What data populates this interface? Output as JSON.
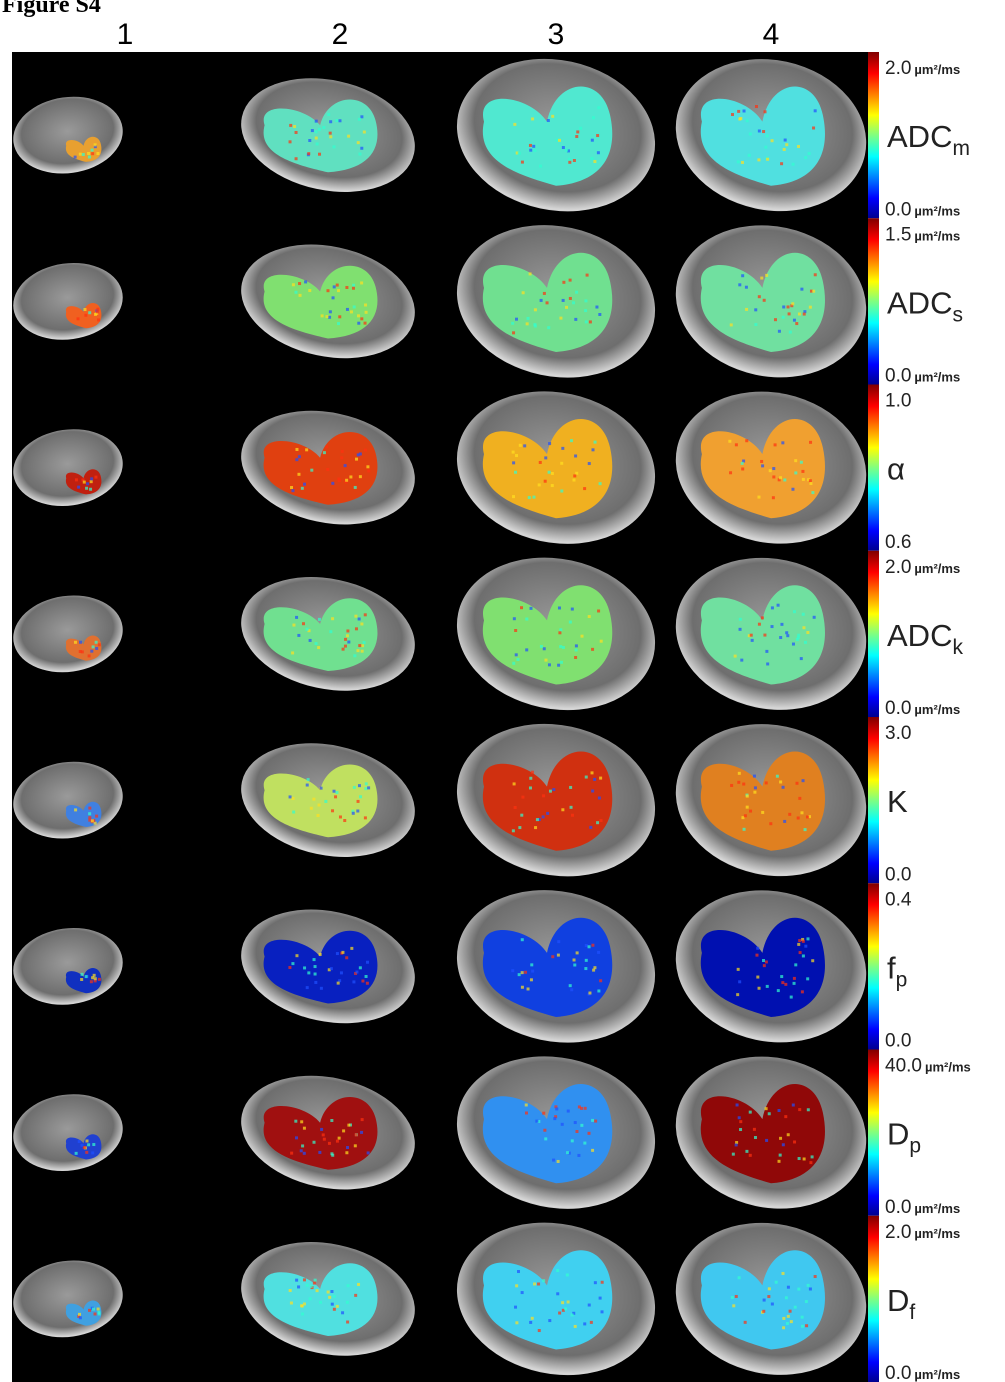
{
  "figure_label": "Figure S4",
  "columns": [
    "1",
    "2",
    "3",
    "4"
  ],
  "rows": [
    {
      "max": {
        "value": "2.0",
        "unit": "µm²/ms"
      },
      "label": {
        "symbol": "ADC",
        "subscript": "m"
      },
      "min": {
        "value": "0.0",
        "unit": "µm²/ms"
      }
    },
    {
      "max": {
        "value": "1.5",
        "unit": "µm²/ms"
      },
      "label": {
        "symbol": "ADC",
        "subscript": "s"
      },
      "min": {
        "value": "0.0",
        "unit": "µm²/ms"
      }
    },
    {
      "max": {
        "value": "1.0"
      },
      "label": {
        "symbol": "α"
      },
      "min": {
        "value": "0.6"
      }
    },
    {
      "max": {
        "value": "2.0",
        "unit": "µm²/ms"
      },
      "label": {
        "symbol": "ADC",
        "subscript": "k"
      },
      "min": {
        "value": "0.0",
        "unit": "µm²/ms"
      }
    },
    {
      "max": {
        "value": "3.0"
      },
      "label": {
        "symbol": "K"
      },
      "min": {
        "value": "0.0"
      }
    },
    {
      "max": {
        "value": "0.4"
      },
      "label": {
        "symbol": "f",
        "subscript": "p"
      },
      "min": {
        "value": "0.0"
      }
    },
    {
      "max": {
        "value": "40.0",
        "unit": "µm²/ms"
      },
      "label": {
        "symbol": "D",
        "subscript": "p"
      },
      "min": {
        "value": "0.0",
        "unit": "µm²/ms"
      }
    },
    {
      "max": {
        "value": "2.0",
        "unit": "µm²/ms"
      },
      "label": {
        "symbol": "D",
        "subscript": "f"
      },
      "min": {
        "value": "0.0",
        "unit": "µm²/ms"
      }
    }
  ]
}
